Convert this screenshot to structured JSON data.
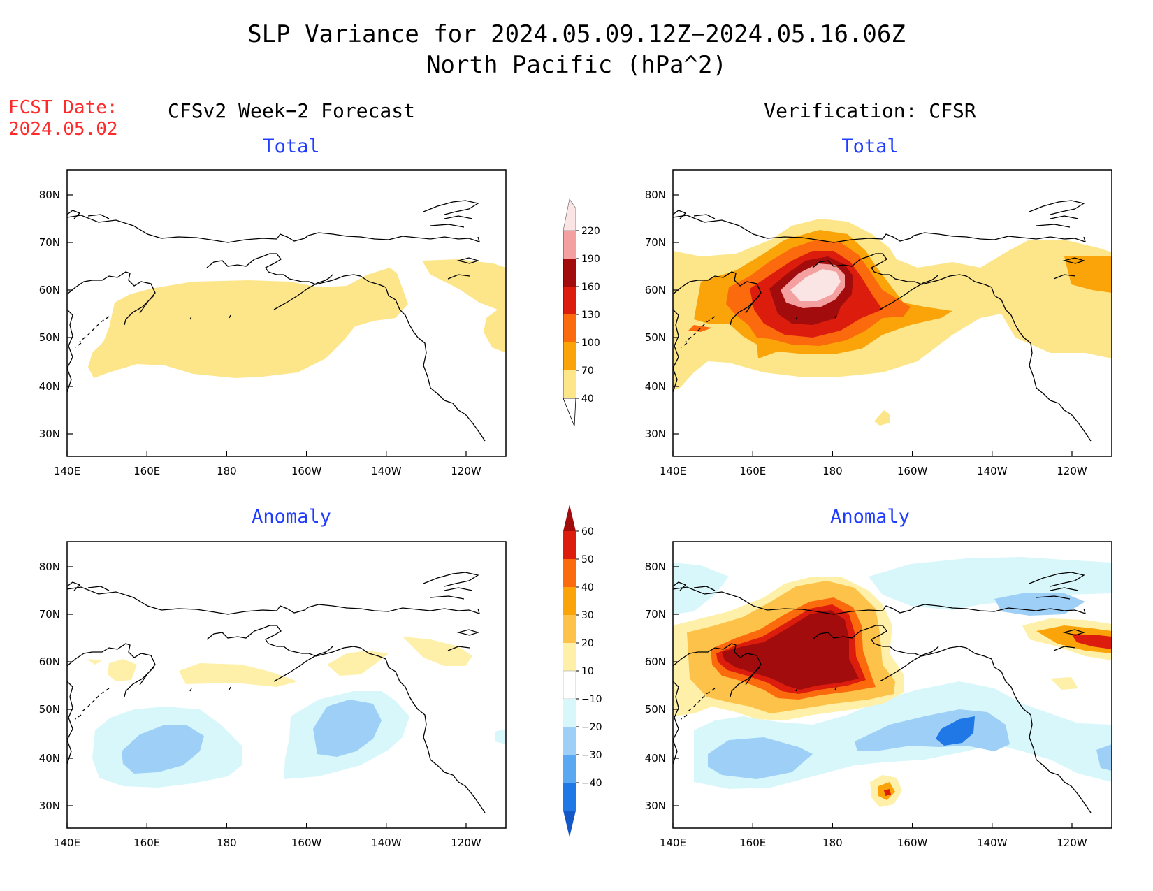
{
  "title": {
    "line1": "SLP Variance for 2024.05.09.12Z−2024.05.16.06Z",
    "line2": "North Pacific (hPa^2)"
  },
  "fcst": {
    "label": "FCST Date:",
    "date": "2024.05.02"
  },
  "columns": {
    "left": "CFSv2 Week−2 Forecast",
    "right": "Verification: CFSR"
  },
  "panels": {
    "fcst_total": "Total",
    "verif_total": "Total",
    "fcst_anom": "Anomaly",
    "verif_anom": "Anomaly"
  },
  "axes": {
    "lon_labels": [
      "140E",
      "160E",
      "180",
      "160W",
      "140W",
      "120W"
    ],
    "lat_labels": [
      "80N",
      "70N",
      "60N",
      "50N",
      "40N",
      "30N"
    ]
  },
  "colorbars": {
    "total": {
      "levels": [
        "40",
        "70",
        "100",
        "130",
        "160",
        "190",
        "220"
      ],
      "colors": [
        "#fde68a",
        "#fba40a",
        "#fb6a0c",
        "#dc1c0c",
        "#a20c0c",
        "#f4a0a0",
        "#fbe4e4"
      ]
    },
    "anomaly": {
      "levels": [
        "60",
        "50",
        "40",
        "30",
        "20",
        "10",
        "−10",
        "−20",
        "−30",
        "−40"
      ],
      "colors": [
        "#a20c0c",
        "#dc1c0c",
        "#fb6a0c",
        "#fba40a",
        "#fdc24a",
        "#fef0a8",
        "#ffffff",
        "#d8f7fb",
        "#9ecff7",
        "#5aa8f2",
        "#1f78e6",
        "#1458c8"
      ]
    }
  },
  "colors": {
    "title_blue": "#1f3cff",
    "fcst_red": "#ff2a2a"
  }
}
